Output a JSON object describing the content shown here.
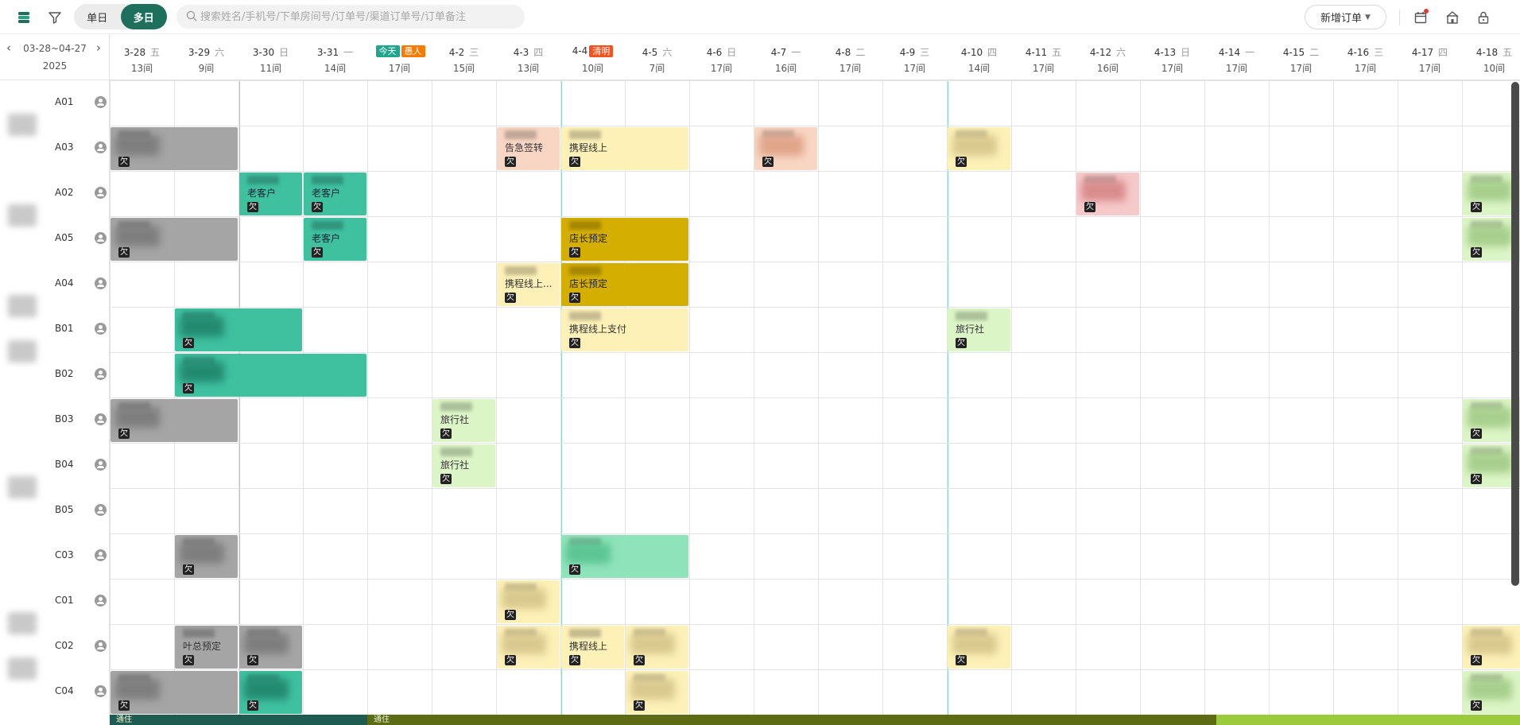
{
  "toolbar": {
    "view_single": "单日",
    "view_multi": "多日",
    "search_placeholder": "搜索姓名/手机号/下单房间号/订单号/渠道订单号/订单备注",
    "new_order": "新增订单"
  },
  "date_nav": {
    "range": "03-28~04-27",
    "year": "2025"
  },
  "days": [
    {
      "date": "3-28",
      "weekday": "五",
      "avail": "13间"
    },
    {
      "date": "3-29",
      "weekday": "六",
      "avail": "9间"
    },
    {
      "date": "3-30",
      "weekday": "日",
      "avail": "11间"
    },
    {
      "date": "3-31",
      "weekday": "一",
      "avail": "14间"
    },
    {
      "date": "",
      "weekday": "",
      "avail": "17间",
      "badges": [
        {
          "text": "今天",
          "color": "#1fa68c"
        },
        {
          "text": "愚人",
          "color": "#f57c00"
        }
      ]
    },
    {
      "date": "4-2",
      "weekday": "三",
      "avail": "15间"
    },
    {
      "date": "4-3",
      "weekday": "四",
      "avail": "13间"
    },
    {
      "date": "4-4",
      "weekday": "",
      "avail": "10间",
      "badges": [
        {
          "text": "清明",
          "color": "#f4511e"
        }
      ]
    },
    {
      "date": "4-5",
      "weekday": "六",
      "avail": "7间"
    },
    {
      "date": "4-6",
      "weekday": "日",
      "avail": "17间"
    },
    {
      "date": "4-7",
      "weekday": "一",
      "avail": "16间"
    },
    {
      "date": "4-8",
      "weekday": "二",
      "avail": "17间"
    },
    {
      "date": "4-9",
      "weekday": "三",
      "avail": "17间"
    },
    {
      "date": "4-10",
      "weekday": "四",
      "avail": "14间"
    },
    {
      "date": "4-11",
      "weekday": "五",
      "avail": "17间"
    },
    {
      "date": "4-12",
      "weekday": "六",
      "avail": "16间"
    },
    {
      "date": "4-13",
      "weekday": "日",
      "avail": "17间"
    },
    {
      "date": "4-14",
      "weekday": "一",
      "avail": "17间"
    },
    {
      "date": "4-15",
      "weekday": "二",
      "avail": "17间"
    },
    {
      "date": "4-16",
      "weekday": "三",
      "avail": "17间"
    },
    {
      "date": "4-17",
      "weekday": "四",
      "avail": "17间"
    },
    {
      "date": "4-18",
      "weekday": "五",
      "avail": "10间"
    }
  ],
  "rooms": [
    "A01",
    "A03",
    "A02",
    "A05",
    "A04",
    "B01",
    "B02",
    "B03",
    "B04",
    "B05",
    "C03",
    "C01",
    "C02",
    "C04"
  ],
  "room_groups": [
    {
      "label": "",
      "first_row": 0
    },
    {
      "label": "",
      "first_row": 2
    },
    {
      "label": "",
      "first_row": 4
    },
    {
      "label": "",
      "first_row": 5
    },
    {
      "label": "",
      "first_row": 8
    },
    {
      "label": "",
      "first_row": 11
    },
    {
      "label": "",
      "first_row": 12
    }
  ],
  "owe_label": "欠",
  "bookings": [
    {
      "row": 1,
      "start": 0,
      "len": 2,
      "color": "gray",
      "text": ""
    },
    {
      "row": 1,
      "start": 6,
      "len": 1,
      "color": "peach",
      "text": "告急签转"
    },
    {
      "row": 1,
      "start": 7,
      "len": 2,
      "color": "yellow",
      "text": "携程线上"
    },
    {
      "row": 1,
      "start": 10,
      "len": 1,
      "color": "peach",
      "text": ""
    },
    {
      "row": 1,
      "start": 13,
      "len": 1,
      "color": "yellow",
      "text": ""
    },
    {
      "row": 2,
      "start": 2,
      "len": 1,
      "color": "teal",
      "text": "老客户"
    },
    {
      "row": 2,
      "start": 3,
      "len": 1,
      "color": "teal",
      "text": "老客户"
    },
    {
      "row": 2,
      "start": 15,
      "len": 1,
      "color": "red",
      "text": ""
    },
    {
      "row": 2,
      "start": 21,
      "len": 1,
      "color": "lgreen",
      "text": ""
    },
    {
      "row": 3,
      "start": 0,
      "len": 2,
      "color": "gray",
      "text": ""
    },
    {
      "row": 3,
      "start": 3,
      "len": 1,
      "color": "teal",
      "text": "老客户"
    },
    {
      "row": 3,
      "start": 7,
      "len": 2,
      "color": "gold",
      "text": "店长预定"
    },
    {
      "row": 3,
      "start": 21,
      "len": 1,
      "color": "lgreen",
      "text": ""
    },
    {
      "row": 4,
      "start": 6,
      "len": 1,
      "color": "yellow",
      "text": "携程线上..."
    },
    {
      "row": 4,
      "start": 7,
      "len": 2,
      "color": "gold",
      "text": "店长预定"
    },
    {
      "row": 5,
      "start": 1,
      "len": 2,
      "color": "teal",
      "text": ""
    },
    {
      "row": 5,
      "start": 7,
      "len": 2,
      "color": "yellow",
      "text": "携程线上支付"
    },
    {
      "row": 5,
      "start": 13,
      "len": 1,
      "color": "lgreen",
      "text": "旅行社"
    },
    {
      "row": 6,
      "start": 1,
      "len": 3,
      "color": "teal",
      "text": ""
    },
    {
      "row": 7,
      "start": 0,
      "len": 2,
      "color": "gray",
      "text": ""
    },
    {
      "row": 7,
      "start": 5,
      "len": 1,
      "color": "lgreen",
      "text": "旅行社"
    },
    {
      "row": 7,
      "start": 21,
      "len": 1,
      "color": "lgreen",
      "text": ""
    },
    {
      "row": 8,
      "start": 5,
      "len": 1,
      "color": "lgreen",
      "text": "旅行社"
    },
    {
      "row": 8,
      "start": 21,
      "len": 1,
      "color": "lgreen",
      "text": ""
    },
    {
      "row": 10,
      "start": 1,
      "len": 1,
      "color": "gray",
      "text": ""
    },
    {
      "row": 10,
      "start": 7,
      "len": 2,
      "color": "mint",
      "text": ""
    },
    {
      "row": 11,
      "start": 6,
      "len": 1,
      "color": "yellow",
      "text": ""
    },
    {
      "row": 12,
      "start": 1,
      "len": 1,
      "color": "gray",
      "text": "叶总预定"
    },
    {
      "row": 12,
      "start": 2,
      "len": 1,
      "color": "gray",
      "text": ""
    },
    {
      "row": 12,
      "start": 6,
      "len": 1,
      "color": "yellow",
      "text": ""
    },
    {
      "row": 12,
      "start": 7,
      "len": 1,
      "color": "yellow",
      "text": "携程线上"
    },
    {
      "row": 12,
      "start": 8,
      "len": 1,
      "color": "yellow",
      "text": ""
    },
    {
      "row": 12,
      "start": 13,
      "len": 1,
      "color": "yellow",
      "text": ""
    },
    {
      "row": 12,
      "start": 21,
      "len": 1,
      "color": "yellow",
      "text": ""
    },
    {
      "row": 13,
      "start": 0,
      "len": 2,
      "color": "gray",
      "text": ""
    },
    {
      "row": 13,
      "start": 2,
      "len": 1,
      "color": "teal",
      "text": ""
    },
    {
      "row": 13,
      "start": 8,
      "len": 1,
      "color": "yellow",
      "text": ""
    },
    {
      "row": 13,
      "start": 21,
      "len": 1,
      "color": "lgreen",
      "text": ""
    }
  ],
  "bottom_labels": [
    "通住",
    "通住"
  ],
  "colors": {
    "accent": "#1e6f5c",
    "today_line": "#8ed6c6",
    "gray": "#a5a5a5",
    "teal": "#3fc1a0",
    "yellow": "#fdf1b8",
    "peach": "#f9d6c4",
    "red": "#f6caca",
    "gold": "#d4ae00",
    "lgreen": "#dcf5c6",
    "mint": "#8fe3bb"
  },
  "icons": [
    "app-logo-icon",
    "filter-icon",
    "search-icon",
    "calendar-icon",
    "house-icon",
    "lock-icon",
    "user-icon"
  ]
}
